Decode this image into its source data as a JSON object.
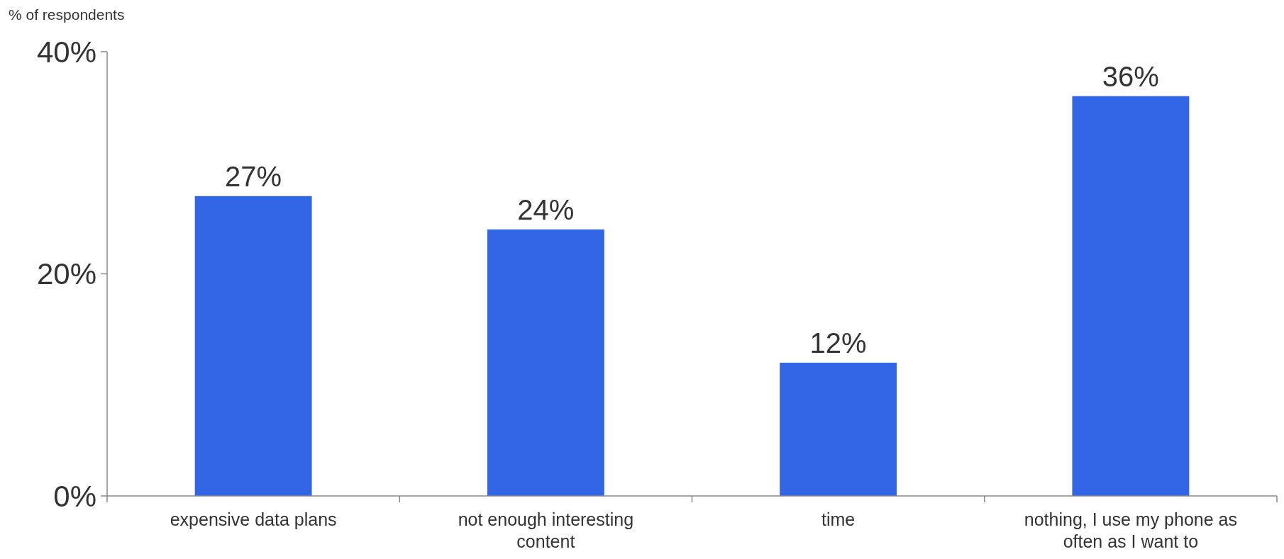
{
  "chart_data": {
    "type": "bar",
    "ylabel": "% of respondents",
    "categories": [
      "expensive data plans",
      "not enough interesting content",
      "time",
      "nothing, I use my phone as often as I want to"
    ],
    "values": [
      27,
      24,
      12,
      36
    ],
    "value_labels": [
      "27%",
      "24%",
      "12%",
      "36%"
    ],
    "color": "#3366e6",
    "ylim": [
      0,
      40
    ],
    "yticks": [
      {
        "value": 0,
        "label": "0%"
      },
      {
        "value": 20,
        "label": "20%"
      },
      {
        "value": 40,
        "label": "40%"
      }
    ]
  }
}
